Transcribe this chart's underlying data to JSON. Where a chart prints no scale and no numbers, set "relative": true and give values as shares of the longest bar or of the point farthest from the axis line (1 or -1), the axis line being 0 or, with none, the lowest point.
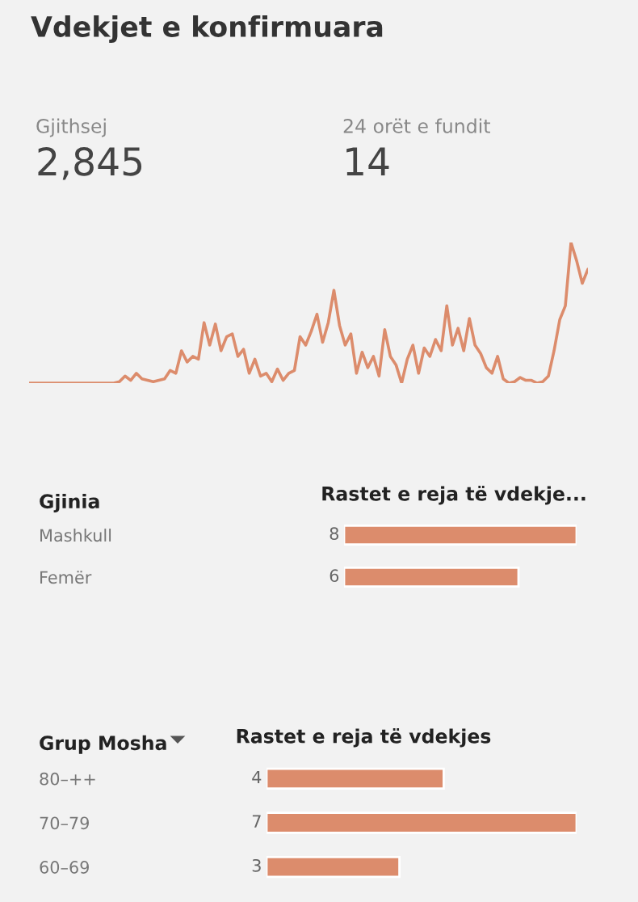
{
  "chart_data": [
    {
      "type": "other",
      "title": "Vdekjet e konfirmuara",
      "annotations": [
        "Gjithsej",
        "2,845",
        "24 orët e fundit",
        "14"
      ]
    },
    {
      "type": "line",
      "relative": true,
      "color": "#dc8c6c",
      "categories": [
        null,
        null,
        null,
        null,
        null,
        null,
        null,
        null,
        null,
        null,
        null,
        null,
        null,
        null,
        null,
        null,
        null,
        null,
        null,
        null,
        null,
        null,
        null,
        null,
        null,
        null,
        null,
        null,
        null,
        null,
        null,
        null,
        null,
        null,
        null,
        null,
        null,
        null,
        null,
        null,
        null,
        null,
        null,
        null,
        null,
        null,
        null,
        null,
        null,
        null,
        null,
        null,
        null,
        null,
        null,
        null,
        null,
        null,
        null,
        null,
        null,
        null,
        null,
        null,
        null,
        null,
        null,
        null,
        null,
        null,
        null,
        null,
        null,
        null,
        null,
        null,
        null,
        null,
        null,
        null,
        null,
        null,
        null,
        null,
        null,
        null,
        null,
        null,
        null,
        null,
        null,
        null,
        null,
        null,
        null,
        null,
        null,
        null,
        null,
        null
      ],
      "values": [
        0,
        0,
        0,
        0,
        0,
        0,
        0,
        0,
        0,
        0,
        0,
        0,
        0,
        0,
        0,
        0,
        0.01,
        0.05,
        0.02,
        0.07,
        0.03,
        0.02,
        0.01,
        0.02,
        0.03,
        0.09,
        0.07,
        0.23,
        0.15,
        0.19,
        0.17,
        0.43,
        0.27,
        0.42,
        0.23,
        0.33,
        0.35,
        0.19,
        0.24,
        0.07,
        0.17,
        0.05,
        0.07,
        0.01,
        0.1,
        0.02,
        0.07,
        0.09,
        0.33,
        0.27,
        0.37,
        0.49,
        0.29,
        0.43,
        0.66,
        0.41,
        0.27,
        0.35,
        0.07,
        0.22,
        0.11,
        0.19,
        0.05,
        0.38,
        0.19,
        0.13,
        0,
        0.17,
        0.27,
        0.07,
        0.25,
        0.19,
        0.31,
        0.23,
        0.55,
        0.27,
        0.39,
        0.23,
        0.46,
        0.27,
        0.21,
        0.11,
        0.07,
        0.19,
        0.03,
        0,
        0.01,
        0.04,
        0.02,
        0.02,
        0,
        0.01,
        0.05,
        0.23,
        0.45,
        0.55,
        1,
        0.87,
        0.71,
        0.81
      ]
    },
    {
      "type": "bar",
      "orientation": "horizontal",
      "title": "Rastet e reja të vdekje...",
      "ylabel": "Gjinia",
      "categories": [
        "Mashkull",
        "Femër"
      ],
      "values": [
        8,
        6
      ],
      "color": "#dc8c6c",
      "data_labels": true
    },
    {
      "type": "bar",
      "orientation": "horizontal",
      "title": "Rastet e reja të vdekjes",
      "ylabel": "Grup Mosha",
      "categories": [
        "80–++",
        "70–79",
        "60–69"
      ],
      "values": [
        4,
        7,
        3
      ],
      "color": "#dc8c6c",
      "data_labels": true
    }
  ]
}
